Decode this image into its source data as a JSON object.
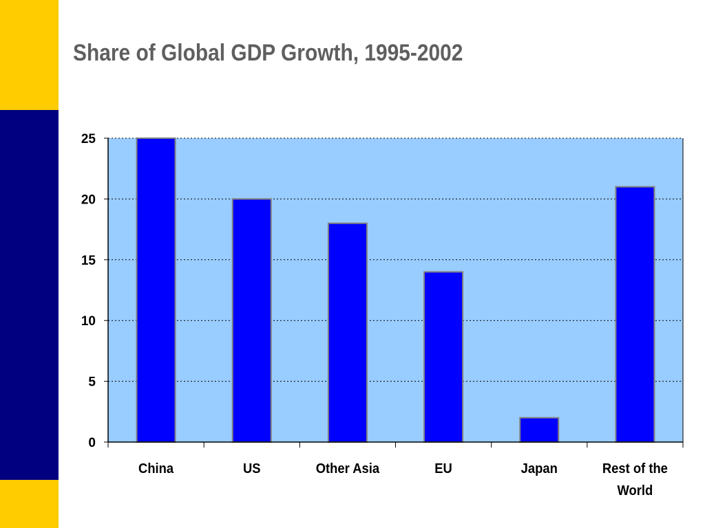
{
  "slide": {
    "title": "Share of Global GDP Growth, 1995-2002",
    "colors": {
      "accent_yellow": "#ffcc00",
      "accent_navy": "#000080",
      "plot_background": "#99ccff",
      "bar_fill": "#0000ff",
      "bar_border": "#808080",
      "title_text": "#5f5f5f"
    }
  },
  "chart_data": {
    "type": "bar",
    "title": "Share of Global GDP Growth, 1995-2002",
    "xlabel": "",
    "ylabel": "",
    "categories": [
      [
        "China"
      ],
      [
        "US"
      ],
      [
        "Other Asia"
      ],
      [
        "EU"
      ],
      [
        "Japan"
      ],
      [
        "Rest of the",
        "World"
      ]
    ],
    "values": [
      25,
      20,
      18,
      14,
      2,
      21
    ],
    "ylim": [
      0,
      25
    ],
    "yticks": [
      0,
      5,
      10,
      15,
      20,
      25
    ],
    "grid": "horizontal dotted",
    "legend": "none"
  }
}
